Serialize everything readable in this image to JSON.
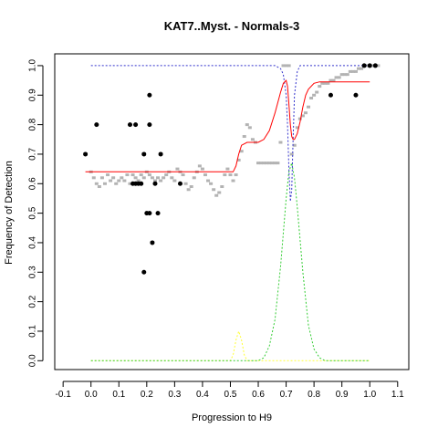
{
  "chart_data": {
    "type": "scatter",
    "title": "KAT7..Myst. - Normals-3",
    "xlabel": "Progression to H9",
    "ylabel": "Frequency of Detection",
    "xlim": [
      -0.13,
      1.14
    ],
    "ylim": [
      -0.03,
      1.04
    ],
    "x_ticks": [
      -0.1,
      0.0,
      0.1,
      0.2,
      0.3,
      0.4,
      0.5,
      0.6,
      0.7,
      0.8,
      0.9,
      1.0,
      1.1
    ],
    "x_tick_labels": [
      "-0.1",
      "0.0",
      "0.1",
      "0.2",
      "0.3",
      "0.4",
      "0.5",
      "0.6",
      "0.7",
      "0.8",
      "0.9",
      "1.0",
      "1.1"
    ],
    "y_ticks": [
      0.0,
      0.1,
      0.2,
      0.3,
      0.4,
      0.5,
      0.6,
      0.7,
      0.8,
      0.9,
      1.0
    ],
    "y_tick_labels": [
      "0.0",
      "0.1",
      "0.2",
      "0.3",
      "0.4",
      "0.5",
      "0.6",
      "0.7",
      "0.8",
      "0.9",
      "1.0"
    ],
    "grid": false,
    "legend": "none",
    "colors": {
      "points": "#000000",
      "smoothed": "#b3b3b3",
      "fit": "#ff0000",
      "blue": "#3333cc",
      "green": "#33cc33",
      "yellow": "#ffff33"
    },
    "points": [
      {
        "x": -0.02,
        "y": 0.7
      },
      {
        "x": 0.02,
        "y": 0.8
      },
      {
        "x": 0.14,
        "y": 0.8
      },
      {
        "x": 0.16,
        "y": 0.8
      },
      {
        "x": 0.15,
        "y": 0.6
      },
      {
        "x": 0.16,
        "y": 0.6
      },
      {
        "x": 0.17,
        "y": 0.6
      },
      {
        "x": 0.18,
        "y": 0.6
      },
      {
        "x": 0.19,
        "y": 0.7
      },
      {
        "x": 0.2,
        "y": 0.5
      },
      {
        "x": 0.21,
        "y": 0.5
      },
      {
        "x": 0.21,
        "y": 0.9
      },
      {
        "x": 0.21,
        "y": 0.8
      },
      {
        "x": 0.22,
        "y": 0.4
      },
      {
        "x": 0.23,
        "y": 0.6
      },
      {
        "x": 0.24,
        "y": 0.5
      },
      {
        "x": 0.25,
        "y": 0.7
      },
      {
        "x": 0.19,
        "y": 0.3
      },
      {
        "x": 0.32,
        "y": 0.6
      },
      {
        "x": 0.86,
        "y": 0.9
      },
      {
        "x": 0.95,
        "y": 0.9
      },
      {
        "x": 0.98,
        "y": 1.0
      },
      {
        "x": 1.0,
        "y": 1.0
      },
      {
        "x": 1.02,
        "y": 1.0
      }
    ],
    "smoothed_points": [
      [
        0.0,
        0.64
      ],
      [
        0.01,
        0.62
      ],
      [
        0.02,
        0.6
      ],
      [
        0.03,
        0.59
      ],
      [
        0.04,
        0.62
      ],
      [
        0.05,
        0.6
      ],
      [
        0.06,
        0.63
      ],
      [
        0.07,
        0.61
      ],
      [
        0.08,
        0.62
      ],
      [
        0.09,
        0.6
      ],
      [
        0.1,
        0.61
      ],
      [
        0.11,
        0.62
      ],
      [
        0.12,
        0.61
      ],
      [
        0.13,
        0.63
      ],
      [
        0.14,
        0.6
      ],
      [
        0.15,
        0.63
      ],
      [
        0.16,
        0.62
      ],
      [
        0.17,
        0.61
      ],
      [
        0.18,
        0.63
      ],
      [
        0.19,
        0.62
      ],
      [
        0.2,
        0.64
      ],
      [
        0.21,
        0.63
      ],
      [
        0.22,
        0.62
      ],
      [
        0.23,
        0.61
      ],
      [
        0.24,
        0.62
      ],
      [
        0.25,
        0.61
      ],
      [
        0.26,
        0.62
      ],
      [
        0.27,
        0.63
      ],
      [
        0.28,
        0.64
      ],
      [
        0.29,
        0.62
      ],
      [
        0.3,
        0.61
      ],
      [
        0.31,
        0.65
      ],
      [
        0.32,
        0.64
      ],
      [
        0.33,
        0.63
      ],
      [
        0.34,
        0.6
      ],
      [
        0.35,
        0.58
      ],
      [
        0.36,
        0.59
      ],
      [
        0.37,
        0.62
      ],
      [
        0.38,
        0.64
      ],
      [
        0.39,
        0.66
      ],
      [
        0.4,
        0.65
      ],
      [
        0.41,
        0.63
      ],
      [
        0.42,
        0.61
      ],
      [
        0.43,
        0.6
      ],
      [
        0.44,
        0.58
      ],
      [
        0.45,
        0.56
      ],
      [
        0.46,
        0.57
      ],
      [
        0.47,
        0.59
      ],
      [
        0.48,
        0.63
      ],
      [
        0.49,
        0.65
      ],
      [
        0.5,
        0.63
      ],
      [
        0.51,
        0.61
      ],
      [
        0.52,
        0.63
      ],
      [
        0.53,
        0.68
      ],
      [
        0.54,
        0.71
      ],
      [
        0.55,
        0.76
      ],
      [
        0.56,
        0.8
      ],
      [
        0.57,
        0.79
      ],
      [
        0.58,
        0.75
      ],
      [
        0.59,
        0.74
      ],
      [
        0.6,
        0.67
      ],
      [
        0.61,
        0.67
      ],
      [
        0.62,
        0.67
      ],
      [
        0.63,
        0.67
      ],
      [
        0.64,
        0.67
      ],
      [
        0.65,
        0.67
      ],
      [
        0.66,
        0.67
      ],
      [
        0.67,
        0.67
      ],
      [
        0.68,
        0.74
      ],
      [
        0.69,
        1.0
      ],
      [
        0.7,
        1.0
      ],
      [
        0.71,
        1.0
      ],
      [
        0.72,
        0.7
      ],
      [
        0.73,
        0.73
      ],
      [
        0.74,
        0.79
      ],
      [
        0.75,
        0.82
      ],
      [
        0.76,
        0.83
      ],
      [
        0.77,
        0.84
      ],
      [
        0.78,
        0.86
      ],
      [
        0.79,
        0.89
      ],
      [
        0.8,
        0.9
      ],
      [
        0.81,
        0.91
      ],
      [
        0.82,
        0.93
      ],
      [
        0.83,
        0.94
      ],
      [
        0.84,
        0.94
      ],
      [
        0.85,
        0.94
      ],
      [
        0.86,
        0.95
      ],
      [
        0.87,
        0.95
      ],
      [
        0.88,
        0.96
      ],
      [
        0.89,
        0.96
      ],
      [
        0.9,
        0.97
      ],
      [
        0.91,
        0.97
      ],
      [
        0.92,
        0.97
      ],
      [
        0.93,
        0.98
      ],
      [
        0.94,
        0.98
      ],
      [
        0.95,
        0.98
      ],
      [
        0.96,
        0.99
      ],
      [
        0.97,
        0.99
      ],
      [
        0.98,
        1.0
      ],
      [
        0.99,
        1.0
      ],
      [
        1.0,
        1.0
      ],
      [
        1.01,
        1.0
      ],
      [
        1.02,
        1.0
      ],
      [
        1.03,
        1.0
      ]
    ],
    "lines": {
      "fit": [
        [
          -0.02,
          0.64
        ],
        [
          0.0,
          0.64
        ],
        [
          0.1,
          0.64
        ],
        [
          0.2,
          0.64
        ],
        [
          0.3,
          0.64
        ],
        [
          0.4,
          0.64
        ],
        [
          0.5,
          0.64
        ],
        [
          0.51,
          0.64
        ],
        [
          0.52,
          0.66
        ],
        [
          0.53,
          0.7
        ],
        [
          0.54,
          0.73
        ],
        [
          0.56,
          0.74
        ],
        [
          0.58,
          0.74
        ],
        [
          0.6,
          0.74
        ],
        [
          0.62,
          0.75
        ],
        [
          0.64,
          0.78
        ],
        [
          0.66,
          0.84
        ],
        [
          0.68,
          0.91
        ],
        [
          0.69,
          0.94
        ],
        [
          0.7,
          0.95
        ],
        [
          0.705,
          0.93
        ],
        [
          0.71,
          0.87
        ],
        [
          0.715,
          0.8
        ],
        [
          0.72,
          0.76
        ],
        [
          0.725,
          0.75
        ],
        [
          0.73,
          0.75
        ],
        [
          0.74,
          0.77
        ],
        [
          0.75,
          0.81
        ],
        [
          0.76,
          0.86
        ],
        [
          0.77,
          0.9
        ],
        [
          0.78,
          0.92
        ],
        [
          0.8,
          0.94
        ],
        [
          0.82,
          0.945
        ],
        [
          0.86,
          0.945
        ],
        [
          0.92,
          0.945
        ],
        [
          1.0,
          0.945
        ]
      ],
      "blue": [
        [
          0.0,
          1.0
        ],
        [
          0.2,
          1.0
        ],
        [
          0.4,
          1.0
        ],
        [
          0.6,
          1.0
        ],
        [
          0.66,
          1.0
        ],
        [
          0.68,
          0.99
        ],
        [
          0.69,
          0.97
        ],
        [
          0.7,
          0.9
        ],
        [
          0.705,
          0.8
        ],
        [
          0.71,
          0.65
        ],
        [
          0.715,
          0.54
        ],
        [
          0.72,
          0.58
        ],
        [
          0.725,
          0.75
        ],
        [
          0.73,
          0.9
        ],
        [
          0.74,
          0.98
        ],
        [
          0.75,
          1.0
        ],
        [
          0.8,
          1.0
        ],
        [
          0.9,
          1.0
        ],
        [
          1.0,
          1.0
        ]
      ],
      "green": [
        [
          0.0,
          0.0
        ],
        [
          0.3,
          0.0
        ],
        [
          0.5,
          0.0
        ],
        [
          0.58,
          0.0
        ],
        [
          0.6,
          0.0
        ],
        [
          0.62,
          0.01
        ],
        [
          0.64,
          0.05
        ],
        [
          0.66,
          0.14
        ],
        [
          0.68,
          0.32
        ],
        [
          0.7,
          0.55
        ],
        [
          0.71,
          0.64
        ],
        [
          0.72,
          0.67
        ],
        [
          0.73,
          0.62
        ],
        [
          0.74,
          0.52
        ],
        [
          0.76,
          0.3
        ],
        [
          0.78,
          0.12
        ],
        [
          0.8,
          0.04
        ],
        [
          0.82,
          0.01
        ],
        [
          0.84,
          0.0
        ],
        [
          0.9,
          0.0
        ],
        [
          1.0,
          0.0
        ]
      ],
      "yellow": [
        [
          0.0,
          0.0
        ],
        [
          0.3,
          0.0
        ],
        [
          0.48,
          0.0
        ],
        [
          0.5,
          0.0
        ],
        [
          0.51,
          0.02
        ],
        [
          0.52,
          0.07
        ],
        [
          0.53,
          0.1
        ],
        [
          0.54,
          0.07
        ],
        [
          0.55,
          0.02
        ],
        [
          0.56,
          0.0
        ],
        [
          0.6,
          0.0
        ],
        [
          0.7,
          0.0
        ],
        [
          0.8,
          0.0
        ],
        [
          0.9,
          0.0
        ],
        [
          1.0,
          0.0
        ]
      ]
    }
  }
}
